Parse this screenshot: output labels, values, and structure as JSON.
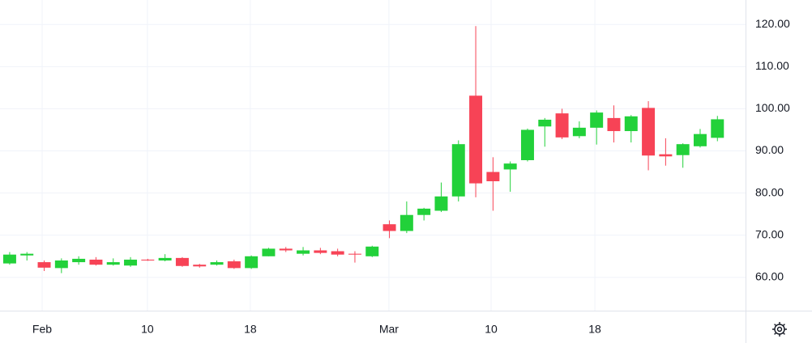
{
  "chart_data": {
    "type": "candlestick",
    "categories": [
      null,
      null,
      null,
      null,
      null,
      null,
      null,
      null,
      null,
      null,
      null,
      null,
      null,
      null,
      null,
      null,
      null,
      null,
      null,
      null,
      null,
      null,
      null,
      null,
      null,
      null,
      null,
      null,
      null,
      null,
      null,
      null,
      null,
      null,
      null,
      null,
      null,
      null,
      null,
      null,
      null,
      null
    ],
    "open": [
      63.3,
      65.2,
      63.6,
      62.2,
      63.6,
      64.2,
      63.0,
      62.8,
      64.2,
      64.0,
      64.6,
      63.0,
      63.0,
      63.8,
      62.2,
      65.0,
      66.8,
      65.6,
      66.4,
      66.2,
      65.6,
      65.0,
      72.6,
      71.0,
      74.8,
      75.8,
      79.2,
      103.1,
      85.0,
      85.6,
      87.8,
      95.8,
      98.9,
      93.5,
      95.5,
      97.8,
      94.7,
      100.2,
      89.2,
      89.0,
      91.1,
      93.1
    ],
    "high": [
      66.0,
      66.0,
      64.0,
      64.5,
      65.0,
      64.8,
      64.5,
      64.8,
      64.4,
      65.5,
      64.8,
      63.2,
      64.0,
      64.2,
      65.2,
      67.0,
      67.2,
      67.2,
      67.0,
      66.8,
      66.2,
      67.5,
      73.5,
      78.0,
      76.5,
      82.5,
      92.5,
      119.6,
      88.5,
      87.5,
      95.3,
      97.8,
      100.0,
      97.0,
      99.6,
      100.8,
      98.5,
      101.8,
      93.0,
      91.8,
      95.2,
      98.3
    ],
    "low": [
      63.0,
      64.0,
      61.5,
      61.0,
      63.0,
      62.8,
      62.8,
      62.5,
      63.9,
      63.8,
      62.5,
      62.3,
      62.8,
      62.0,
      62.0,
      65.0,
      66.0,
      65.2,
      65.5,
      65.0,
      63.5,
      64.8,
      69.3,
      70.5,
      73.5,
      75.5,
      78.0,
      79.0,
      75.8,
      80.3,
      87.5,
      91.0,
      92.8,
      93.0,
      91.5,
      92.0,
      92.0,
      85.4,
      86.5,
      86.0,
      90.8,
      92.3
    ],
    "close": [
      65.4,
      65.6,
      62.3,
      64.0,
      64.4,
      63.0,
      63.6,
      64.2,
      64.0,
      64.6,
      62.7,
      62.6,
      63.6,
      62.2,
      65.0,
      66.8,
      66.4,
      66.4,
      65.8,
      65.4,
      65.4,
      67.3,
      71.0,
      74.8,
      76.3,
      79.2,
      91.6,
      82.3,
      82.8,
      87.0,
      95.0,
      97.4,
      93.2,
      95.5,
      99.1,
      94.7,
      98.2,
      88.9,
      88.7,
      91.6,
      94.0,
      97.5
    ],
    "up_color": "#22d13a",
    "down_color": "#f74356",
    "xlim": [
      -0.56,
      42.63
    ],
    "xticks": [
      {
        "value": 1.88,
        "label": "Feb"
      },
      {
        "value": 7.98,
        "label": "10"
      },
      {
        "value": 13.94,
        "label": "18"
      },
      {
        "value": 21.97,
        "label": "Mar"
      },
      {
        "value": 27.89,
        "label": "10"
      },
      {
        "value": 33.9,
        "label": "18"
      }
    ],
    "ylim": [
      52.1,
      125.8
    ],
    "yticks": [
      {
        "value": 60,
        "label": "60.00"
      },
      {
        "value": 70,
        "label": "70.00"
      },
      {
        "value": 80,
        "label": "80.00"
      },
      {
        "value": 90,
        "label": "90.00"
      },
      {
        "value": 100,
        "label": "100.00"
      },
      {
        "value": 110,
        "label": "110.00"
      },
      {
        "value": 120,
        "label": "120.00"
      }
    ],
    "grid": true
  }
}
